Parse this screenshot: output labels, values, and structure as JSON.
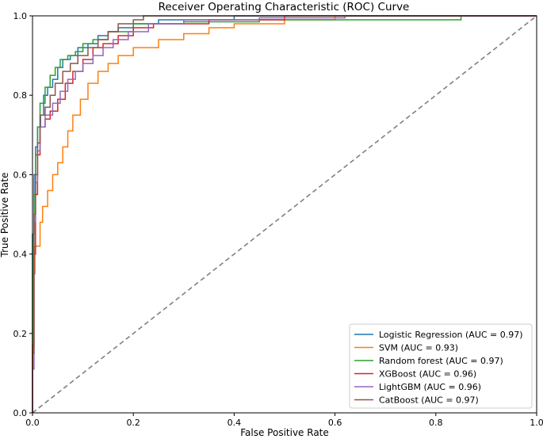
{
  "chart_data": {
    "type": "line",
    "title": "Receiver Operating Characteristic (ROC) Curve",
    "xlabel": "False Positive Rate",
    "ylabel": "True Positive Rate",
    "xlim": [
      0.0,
      1.0
    ],
    "ylim": [
      0.0,
      1.0
    ],
    "xticks": [
      "0.0",
      "0.2",
      "0.4",
      "0.6",
      "0.8",
      "1.0"
    ],
    "yticks": [
      "0.0",
      "0.2",
      "0.4",
      "0.6",
      "0.8",
      "1.0"
    ],
    "grid": false,
    "legend_position": "lower-right",
    "reference_line": {
      "x": [
        0,
        1
      ],
      "y": [
        0,
        1
      ],
      "color": "#808080",
      "style": "dashed"
    },
    "series": [
      {
        "name": "Logistic Regression (AUC = 0.97)",
        "color": "#1f77b4",
        "x": [
          0,
          0,
          0.003,
          0.003,
          0.006,
          0.006,
          0.01,
          0.01,
          0.016,
          0.016,
          0.022,
          0.022,
          0.03,
          0.03,
          0.04,
          0.04,
          0.05,
          0.05,
          0.06,
          0.06,
          0.075,
          0.075,
          0.09,
          0.09,
          0.11,
          0.11,
          0.13,
          0.13,
          0.15,
          0.15,
          0.17,
          0.17,
          0.2,
          0.2,
          0.25,
          0.25,
          0.4,
          0.4,
          0.65,
          0.65,
          1.0
        ],
        "y": [
          0,
          0.45,
          0.45,
          0.6,
          0.6,
          0.67,
          0.67,
          0.72,
          0.72,
          0.75,
          0.75,
          0.8,
          0.8,
          0.82,
          0.82,
          0.84,
          0.84,
          0.87,
          0.87,
          0.89,
          0.89,
          0.9,
          0.9,
          0.92,
          0.92,
          0.93,
          0.93,
          0.95,
          0.95,
          0.96,
          0.96,
          0.97,
          0.97,
          0.98,
          0.98,
          0.99,
          0.99,
          1.0,
          1.0,
          1.0,
          1.0
        ]
      },
      {
        "name": "SVM (AUC = 0.93)",
        "color": "#ff7f0e",
        "x": [
          0,
          0,
          0.005,
          0.005,
          0.015,
          0.015,
          0.02,
          0.02,
          0.03,
          0.03,
          0.04,
          0.04,
          0.05,
          0.05,
          0.06,
          0.06,
          0.07,
          0.07,
          0.08,
          0.08,
          0.095,
          0.095,
          0.11,
          0.11,
          0.13,
          0.13,
          0.15,
          0.15,
          0.17,
          0.17,
          0.2,
          0.2,
          0.25,
          0.25,
          0.3,
          0.3,
          0.35,
          0.35,
          0.4,
          0.4,
          0.5,
          0.5,
          0.6,
          0.6,
          0.7,
          0.7,
          1.0
        ],
        "y": [
          0,
          0.35,
          0.35,
          0.42,
          0.42,
          0.48,
          0.48,
          0.52,
          0.52,
          0.56,
          0.56,
          0.6,
          0.6,
          0.63,
          0.63,
          0.67,
          0.67,
          0.71,
          0.71,
          0.75,
          0.75,
          0.79,
          0.79,
          0.83,
          0.83,
          0.86,
          0.86,
          0.88,
          0.88,
          0.9,
          0.9,
          0.92,
          0.92,
          0.94,
          0.94,
          0.955,
          0.955,
          0.97,
          0.97,
          0.98,
          0.98,
          0.99,
          0.99,
          1.0,
          1.0,
          1.0,
          1.0
        ]
      },
      {
        "name": "Random forest (AUC = 0.97)",
        "color": "#2ca02c",
        "x": [
          0,
          0,
          0.003,
          0.003,
          0.006,
          0.006,
          0.01,
          0.01,
          0.015,
          0.015,
          0.025,
          0.025,
          0.035,
          0.035,
          0.045,
          0.045,
          0.055,
          0.055,
          0.07,
          0.07,
          0.085,
          0.085,
          0.1,
          0.1,
          0.12,
          0.12,
          0.15,
          0.15,
          0.2,
          0.2,
          0.3,
          0.3,
          0.45,
          0.45,
          0.6,
          0.6,
          0.85,
          0.85,
          1.0
        ],
        "y": [
          0,
          0.45,
          0.45,
          0.55,
          0.55,
          0.65,
          0.65,
          0.72,
          0.72,
          0.78,
          0.78,
          0.82,
          0.82,
          0.85,
          0.85,
          0.87,
          0.87,
          0.89,
          0.89,
          0.9,
          0.9,
          0.91,
          0.91,
          0.93,
          0.93,
          0.94,
          0.94,
          0.96,
          0.96,
          0.98,
          0.98,
          0.985,
          0.985,
          0.99,
          0.99,
          0.99,
          0.99,
          1.0,
          1.0
        ]
      },
      {
        "name": "XGBoost (AUC = 0.96)",
        "color": "#d62728",
        "x": [
          0,
          0,
          0.003,
          0.003,
          0.006,
          0.006,
          0.01,
          0.01,
          0.015,
          0.015,
          0.025,
          0.025,
          0.035,
          0.035,
          0.05,
          0.05,
          0.065,
          0.065,
          0.08,
          0.08,
          0.1,
          0.1,
          0.12,
          0.12,
          0.14,
          0.14,
          0.17,
          0.17,
          0.2,
          0.2,
          0.24,
          0.24,
          0.35,
          0.35,
          0.5,
          0.5,
          1.0
        ],
        "y": [
          0,
          0.17,
          0.17,
          0.4,
          0.4,
          0.55,
          0.55,
          0.65,
          0.65,
          0.72,
          0.72,
          0.74,
          0.74,
          0.76,
          0.76,
          0.79,
          0.79,
          0.83,
          0.83,
          0.86,
          0.86,
          0.89,
          0.89,
          0.92,
          0.92,
          0.93,
          0.93,
          0.95,
          0.95,
          0.97,
          0.97,
          0.98,
          0.98,
          0.99,
          0.99,
          1.0,
          1.0
        ]
      },
      {
        "name": "LightGBM (AUC = 0.96)",
        "color": "#9467bd",
        "x": [
          0,
          0,
          0.003,
          0.003,
          0.006,
          0.006,
          0.01,
          0.01,
          0.015,
          0.015,
          0.025,
          0.025,
          0.04,
          0.04,
          0.055,
          0.055,
          0.07,
          0.07,
          0.085,
          0.085,
          0.1,
          0.1,
          0.12,
          0.12,
          0.14,
          0.14,
          0.16,
          0.16,
          0.19,
          0.19,
          0.23,
          0.23,
          0.3,
          0.3,
          0.45,
          0.45,
          0.62,
          0.62,
          1.0
        ],
        "y": [
          0,
          0.11,
          0.11,
          0.48,
          0.48,
          0.58,
          0.58,
          0.66,
          0.66,
          0.72,
          0.72,
          0.75,
          0.75,
          0.78,
          0.78,
          0.81,
          0.81,
          0.84,
          0.84,
          0.86,
          0.86,
          0.88,
          0.88,
          0.9,
          0.9,
          0.92,
          0.92,
          0.94,
          0.94,
          0.96,
          0.96,
          0.98,
          0.98,
          0.99,
          0.99,
          0.995,
          0.995,
          1.0,
          1.0
        ]
      },
      {
        "name": "CatBoost (AUC = 0.97)",
        "color": "#8c564b",
        "x": [
          0,
          0,
          0.003,
          0.003,
          0.006,
          0.006,
          0.01,
          0.01,
          0.015,
          0.015,
          0.025,
          0.025,
          0.035,
          0.035,
          0.045,
          0.045,
          0.06,
          0.06,
          0.075,
          0.075,
          0.09,
          0.09,
          0.11,
          0.11,
          0.13,
          0.13,
          0.15,
          0.15,
          0.17,
          0.17,
          0.2,
          0.2,
          0.22,
          0.22,
          1.0
        ],
        "y": [
          0,
          0.15,
          0.15,
          0.5,
          0.5,
          0.6,
          0.6,
          0.68,
          0.68,
          0.75,
          0.75,
          0.77,
          0.77,
          0.8,
          0.8,
          0.83,
          0.83,
          0.86,
          0.86,
          0.88,
          0.88,
          0.9,
          0.9,
          0.92,
          0.92,
          0.94,
          0.94,
          0.96,
          0.96,
          0.98,
          0.98,
          0.99,
          0.99,
          1.0,
          1.0
        ]
      }
    ]
  }
}
